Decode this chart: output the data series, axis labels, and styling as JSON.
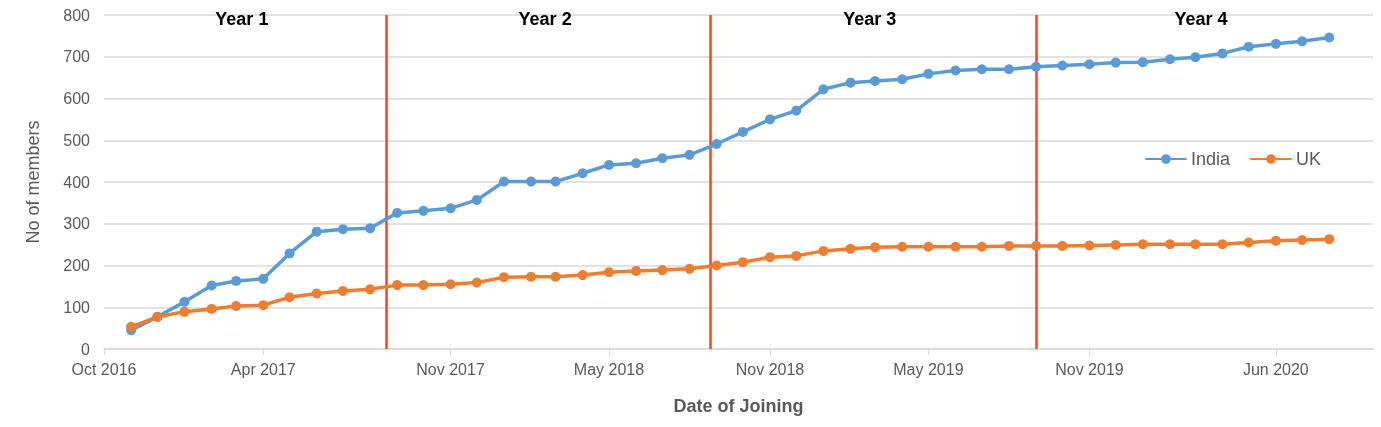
{
  "chart_data": {
    "type": "line",
    "xlabel": "Date of Joining",
    "ylabel": "No of members",
    "x": [
      "2016-11",
      "2016-12",
      "2017-01",
      "2017-02",
      "2017-03",
      "2017-04",
      "2017-05",
      "2017-06",
      "2017-07",
      "2017-08",
      "2017-09",
      "2017-10",
      "2017-11",
      "2017-12",
      "2018-01",
      "2018-02",
      "2018-03",
      "2018-04",
      "2018-05",
      "2018-06",
      "2018-07",
      "2018-08",
      "2018-09",
      "2018-10",
      "2018-11",
      "2018-12",
      "2019-01",
      "2019-02",
      "2019-03",
      "2019-04",
      "2019-05",
      "2019-06",
      "2019-07",
      "2019-08",
      "2019-09",
      "2019-10",
      "2019-11",
      "2019-12",
      "2020-01",
      "2020-02",
      "2020-03",
      "2020-04",
      "2020-05",
      "2020-06",
      "2020-07",
      "2020-08"
    ],
    "series": [
      {
        "name": "India",
        "color": "#5b9bd5",
        "values": [
          45,
          77,
          113,
          152,
          163,
          168,
          229,
          281,
          287,
          289,
          326,
          331,
          337,
          357,
          401,
          401,
          401,
          421,
          441,
          445,
          457,
          465,
          491,
          520,
          550,
          571,
          622,
          638,
          642,
          646,
          659,
          667,
          670,
          670,
          676,
          679,
          682,
          686,
          687,
          694,
          699,
          708,
          724,
          731,
          737,
          746
        ]
      },
      {
        "name": "UK",
        "color": "#ed7d31",
        "values": [
          53,
          77,
          89,
          96,
          103,
          105,
          124,
          133,
          139,
          143,
          153,
          153,
          155,
          159,
          172,
          173,
          173,
          177,
          184,
          187,
          189,
          192,
          200,
          208,
          220,
          223,
          235,
          240,
          244,
          245,
          245,
          245,
          245,
          247,
          247,
          247,
          248,
          249,
          251,
          251,
          251,
          251,
          255,
          259,
          261,
          263
        ]
      }
    ],
    "xlim": [
      "2016-10-01",
      "2020-09-20"
    ],
    "xticks": [
      {
        "value": "2016-10-01",
        "label": "Oct 2016"
      },
      {
        "value": "2017-04-01",
        "label": "Apr 2017"
      },
      {
        "value": "2017-11-01",
        "label": "Nov 2017"
      },
      {
        "value": "2018-05-01",
        "label": "May 2018"
      },
      {
        "value": "2018-11-01",
        "label": "Nov 2018"
      },
      {
        "value": "2019-05-01",
        "label": "May 2019"
      },
      {
        "value": "2019-11-01",
        "label": "Nov 2019"
      },
      {
        "value": "2020-06-01",
        "label": "Jun 2020"
      }
    ],
    "ylim": [
      0,
      800
    ],
    "yticks": [
      0,
      100,
      200,
      300,
      400,
      500,
      600,
      700,
      800
    ],
    "ref_lines": [
      {
        "axis": "x",
        "value": "2017-08-20",
        "color": "#fc4418"
      },
      {
        "axis": "x",
        "value": "2018-08-25",
        "color": "#fc4418"
      },
      {
        "axis": "x",
        "value": "2019-09-01",
        "color": "#fc4418"
      }
    ],
    "annotations": [
      "Year 1",
      "Year 2",
      "Year 3",
      "Year 4"
    ],
    "grid": "y",
    "legend": "right",
    "marker": "circle",
    "line_style": "solid"
  }
}
